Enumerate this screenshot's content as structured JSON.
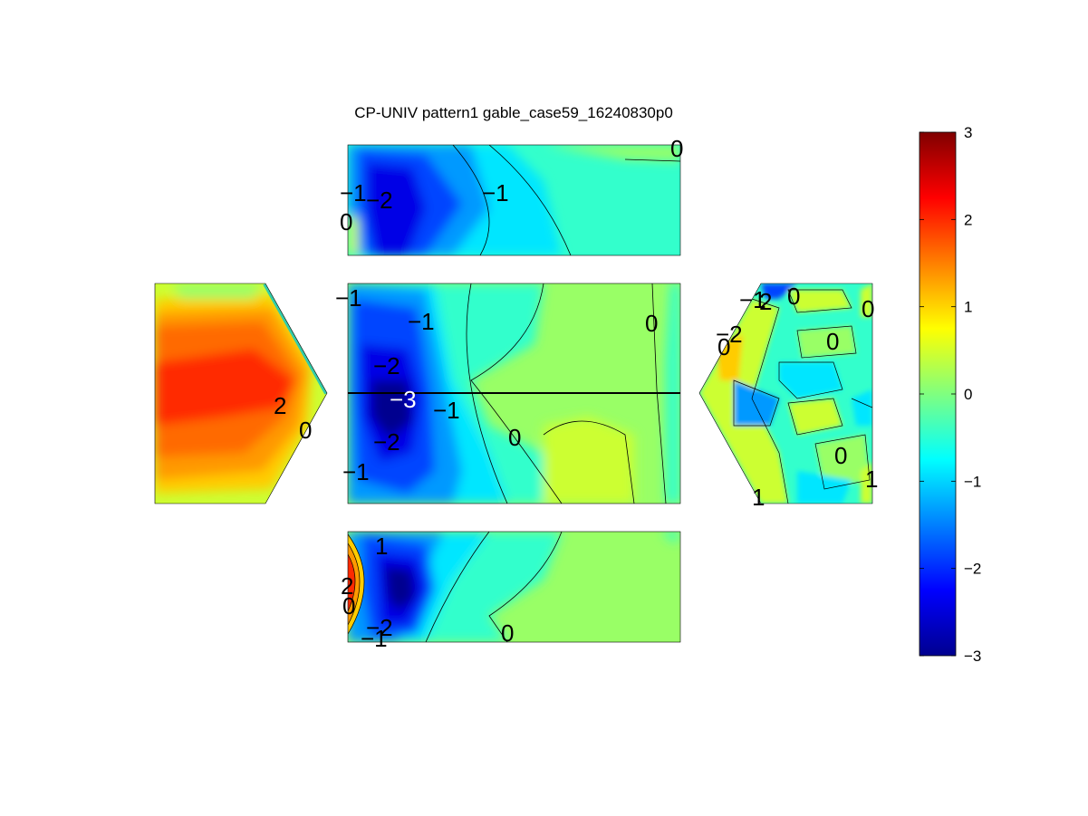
{
  "chart_data": {
    "type": "heatmap",
    "title": "CP-UNIV pattern1 gable_case59_16240830p0",
    "colormap": "jet",
    "color_limits": [
      -3,
      3
    ],
    "colorbar": {
      "location": "right",
      "ticks": [
        3,
        2,
        1,
        0,
        -1,
        -2,
        -3
      ],
      "tick_labels": [
        "3",
        "2",
        "1",
        "0",
        "−1",
        "−2",
        "−3"
      ]
    },
    "panels": [
      {
        "name": "top-face",
        "contour_labels": [
          "0",
          "−1",
          "−2",
          "0",
          "−1"
        ]
      },
      {
        "name": "left-gable",
        "contour_labels": [
          "2",
          "0"
        ]
      },
      {
        "name": "center-roof",
        "contour_labels": [
          "−1",
          "−1",
          "0",
          "−2",
          "−3",
          "−1",
          "−2",
          "0",
          "−1"
        ]
      },
      {
        "name": "right-gable",
        "contour_labels": [
          "−1",
          "2",
          "0",
          "0",
          "−2",
          "0",
          "0",
          "0",
          "1",
          "1"
        ]
      },
      {
        "name": "bottom-face",
        "contour_labels": [
          "1",
          "2",
          "0",
          "−2",
          "−1",
          "0"
        ]
      }
    ]
  }
}
